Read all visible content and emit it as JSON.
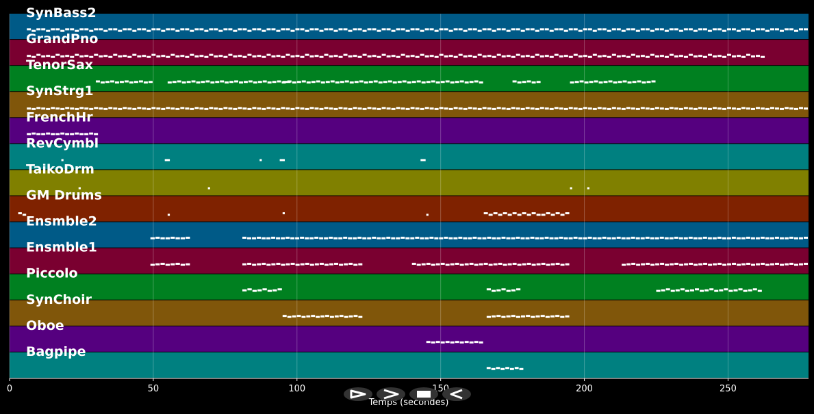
{
  "chart_data": {
    "type": "piano-roll",
    "xlabel": "Temps (secondes)",
    "xlim": [
      0,
      278
    ],
    "x_ticks": [
      0,
      50,
      100,
      150,
      200,
      250
    ],
    "grid": true,
    "tracks": [
      {
        "name": "SynBass2",
        "color": "#005a87",
        "notes": [
          [
            6,
            278
          ]
        ],
        "pitch": [
          0.45,
          0.6,
          0.45
        ]
      },
      {
        "name": "GrandPno",
        "color": "#7a0030",
        "notes": [
          [
            6,
            263
          ]
        ],
        "pitch": [
          0.5,
          0.6,
          0.4,
          0.55
        ]
      },
      {
        "name": "TenorSax",
        "color": "#008020",
        "notes": [
          [
            30,
            50
          ],
          [
            55,
            98
          ],
          [
            95,
            165
          ],
          [
            175,
            185
          ],
          [
            195,
            225
          ]
        ],
        "pitch": [
          0.45,
          0.55,
          0.5
        ]
      },
      {
        "name": "SynStrg1",
        "color": "#80560a",
        "notes": [
          [
            6,
            278
          ]
        ],
        "pitch": [
          0.55,
          0.6,
          0.5
        ]
      },
      {
        "name": "FrenchHr",
        "color": "#55007f",
        "notes": [
          [
            6,
            31
          ]
        ],
        "pitch": [
          0.5,
          0.45,
          0.5
        ]
      },
      {
        "name": "RevCymbl",
        "color": "#008080",
        "notes": [
          [
            18,
            19
          ],
          [
            54,
            56
          ],
          [
            87,
            88
          ],
          [
            94,
            96
          ],
          [
            143,
            145
          ]
        ],
        "pitch": [
          0.5
        ]
      },
      {
        "name": "TaikoDrm",
        "color": "#808000",
        "notes": [
          [
            24,
            25
          ],
          [
            69,
            70
          ],
          [
            195,
            196
          ],
          [
            201,
            202
          ]
        ],
        "pitch": [
          0.7
        ]
      },
      {
        "name": "GM Drums",
        "color": "#7f2200",
        "notes": [
          [
            3,
            6
          ],
          [
            55,
            56
          ],
          [
            95,
            96
          ],
          [
            145,
            146
          ],
          [
            165,
            185
          ],
          [
            185,
            195
          ]
        ],
        "pitch": [
          0.6,
          0.75
        ]
      },
      {
        "name": "Ensmble2",
        "color": "#005a87",
        "notes": [
          [
            49,
            63
          ],
          [
            81,
            278
          ]
        ],
        "pitch": [
          0.5,
          0.45,
          0.5
        ]
      },
      {
        "name": "Ensmble1",
        "color": "#7a0030",
        "notes": [
          [
            49,
            63
          ],
          [
            81,
            123
          ],
          [
            140,
            195
          ],
          [
            213,
            278
          ]
        ],
        "pitch": [
          0.55,
          0.5,
          0.45
        ]
      },
      {
        "name": "Piccolo",
        "color": "#008020",
        "notes": [
          [
            81,
            95
          ],
          [
            166,
            178
          ],
          [
            225,
            262
          ]
        ],
        "pitch": [
          0.5,
          0.4,
          0.55
        ]
      },
      {
        "name": "SynChoir",
        "color": "#80560a",
        "notes": [
          [
            95,
            123
          ],
          [
            166,
            195
          ]
        ],
        "pitch": [
          0.45,
          0.55,
          0.5
        ]
      },
      {
        "name": "Oboe",
        "color": "#55007f",
        "notes": [
          [
            145,
            165
          ]
        ],
        "pitch": [
          0.45,
          0.5
        ]
      },
      {
        "name": "Bagpipe",
        "color": "#008080",
        "notes": [
          [
            166,
            179
          ]
        ],
        "pitch": [
          0.45,
          0.55
        ]
      }
    ]
  },
  "controls": [
    {
      "name": "play-button",
      "glyph": "play"
    },
    {
      "name": "forward-button",
      "glyph": "forward"
    },
    {
      "name": "stop-button",
      "glyph": "stop"
    },
    {
      "name": "rewind-button",
      "glyph": "rewind"
    }
  ]
}
